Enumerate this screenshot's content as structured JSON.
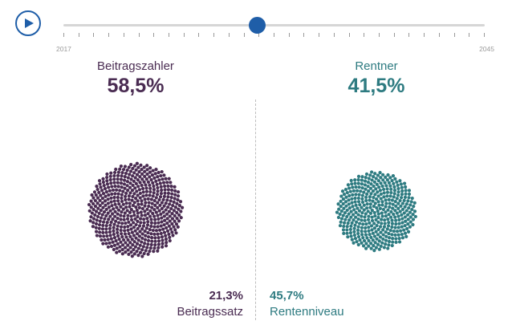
{
  "timeline": {
    "start_year": "2017",
    "end_year": "2045",
    "position": 0.46,
    "tick_count": 29
  },
  "left": {
    "label": "Beitragszahler",
    "value": "58,5%",
    "stat_value": "21,3%",
    "stat_label": "Beitragssatz"
  },
  "right": {
    "label": "Rentner",
    "value": "41,5%",
    "stat_value": "45,7%",
    "stat_label": "Rentenniveau"
  },
  "colors": {
    "accent": "#1f5ea8",
    "left": "#4a2c52",
    "right": "#2e7b81"
  },
  "icons": {
    "play": "play-icon"
  }
}
